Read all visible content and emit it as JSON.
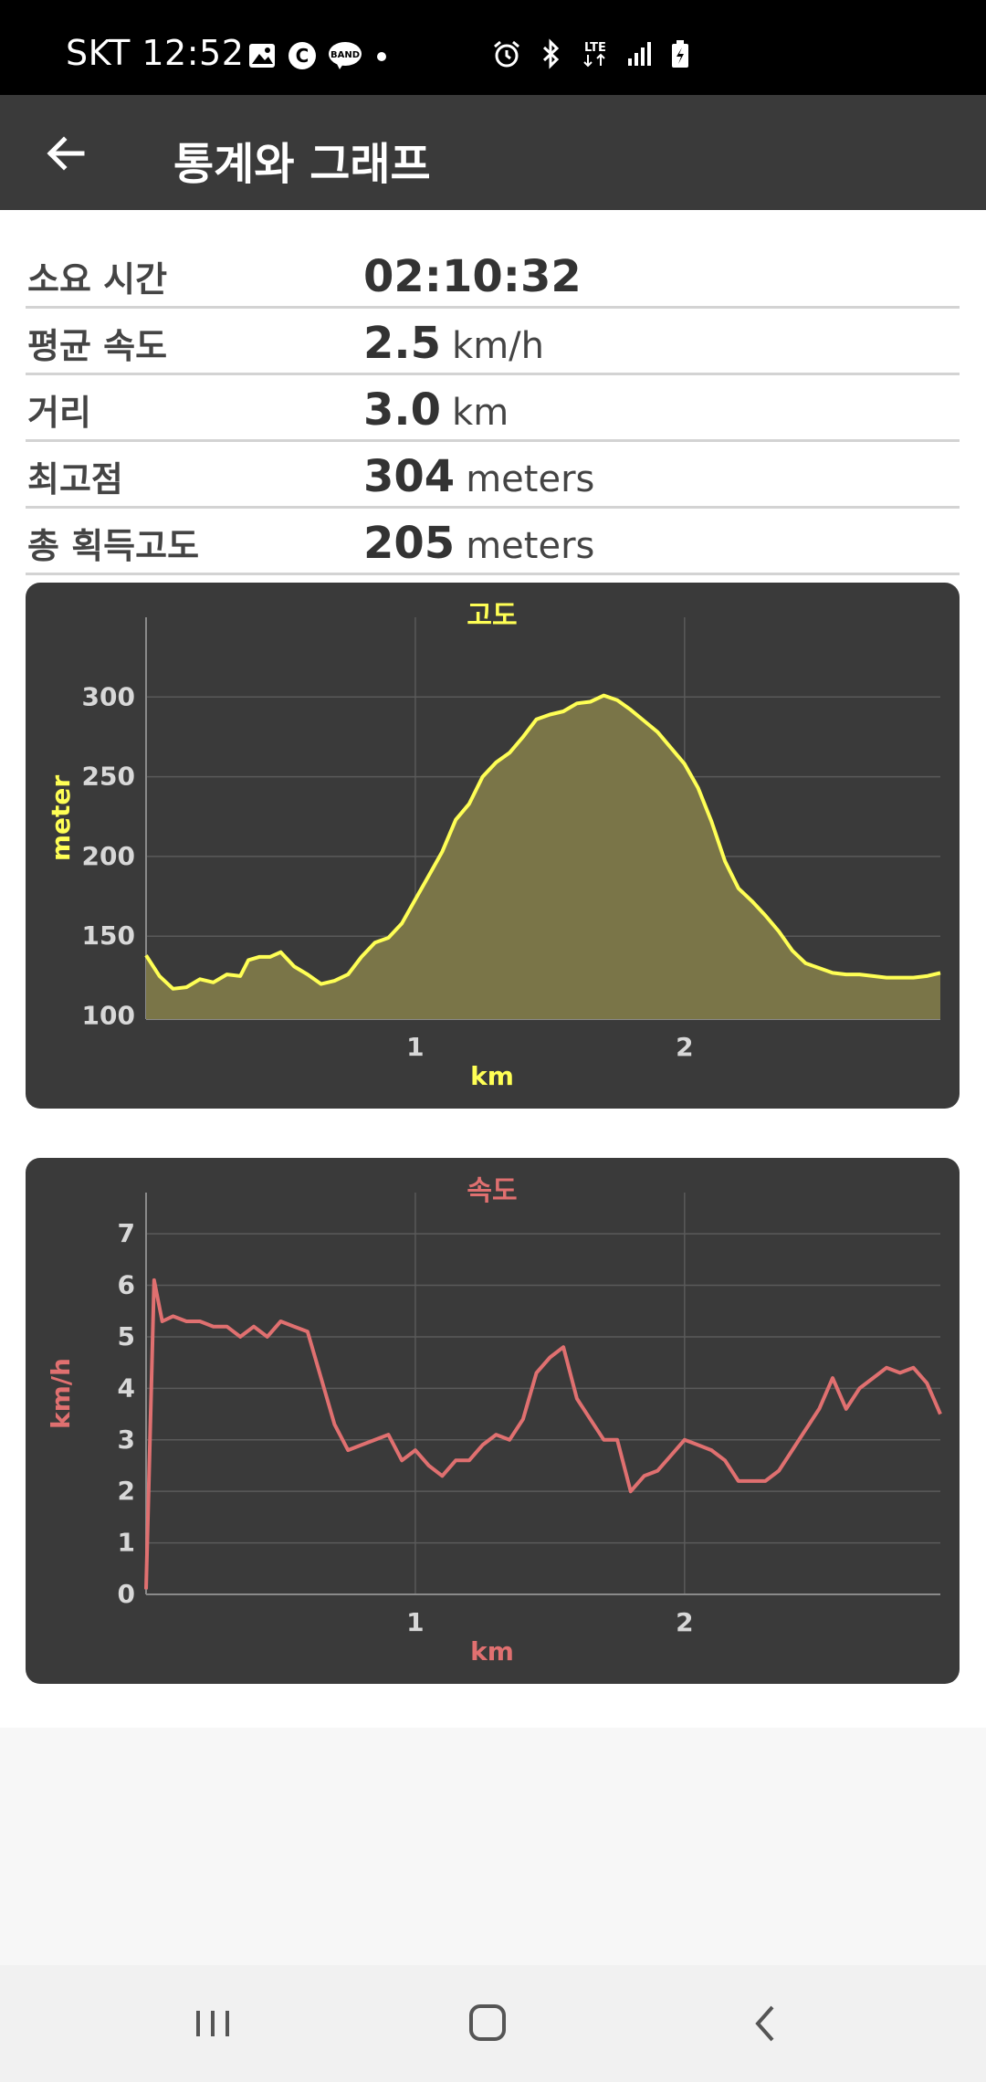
{
  "status_bar": {
    "carrier_time": "SKT 12:52",
    "left_icons": [
      "gallery-icon",
      "c-icon",
      "band-icon",
      "dot-icon"
    ],
    "right_icons": [
      "alarm-icon",
      "bluetooth-icon",
      "lte-icon",
      "signal-icon",
      "battery-icon"
    ],
    "lte_label": "LTE"
  },
  "app_bar": {
    "title": "통계와 그래프",
    "back_icon": "arrow-left-icon"
  },
  "stats": [
    {
      "label": "소요 시간",
      "value": "02:10:32",
      "unit": ""
    },
    {
      "label": "평균 속도",
      "value": "2.5",
      "unit": "km/h"
    },
    {
      "label": "거리",
      "value": "3.0",
      "unit": "km"
    },
    {
      "label": "최고점",
      "value": "304",
      "unit": "meters"
    },
    {
      "label": "총 획득고도",
      "value": "205",
      "unit": "meters"
    }
  ],
  "chart_data": [
    {
      "type": "area",
      "title": "고도",
      "xlabel": "km",
      "ylabel": "meter",
      "xlim": [
        0,
        2.95
      ],
      "ylim": [
        98,
        350
      ],
      "xticks": [
        1,
        2
      ],
      "yticks": [
        100,
        150,
        200,
        250,
        300
      ],
      "grid": true,
      "color": "#ffff55",
      "fill": "#7a7548",
      "series": [
        {
          "x": [
            0,
            0.05,
            0.1,
            0.15,
            0.2,
            0.25,
            0.3,
            0.35,
            0.38,
            0.42,
            0.46,
            0.5,
            0.55,
            0.6,
            0.65,
            0.7,
            0.75,
            0.8,
            0.85,
            0.9,
            0.95,
            1.0,
            1.05,
            1.1,
            1.15,
            1.2,
            1.25,
            1.3,
            1.35,
            1.4,
            1.45,
            1.5,
            1.55,
            1.6,
            1.65,
            1.7,
            1.75,
            1.8,
            1.85,
            1.9,
            1.95,
            2.0,
            2.05,
            2.1,
            2.15,
            2.2,
            2.25,
            2.3,
            2.35,
            2.4,
            2.45,
            2.5,
            2.55,
            2.6,
            2.65,
            2.7,
            2.75,
            2.8,
            2.85,
            2.9,
            2.95
          ],
          "y": [
            138,
            125,
            117,
            118,
            123,
            121,
            126,
            125,
            135,
            137,
            137,
            140,
            131,
            126,
            120,
            122,
            126,
            137,
            146,
            149,
            158,
            173,
            188,
            203,
            223,
            233,
            250,
            259,
            265,
            275,
            286,
            289,
            291,
            296,
            297,
            301,
            298,
            292,
            285,
            278,
            268,
            258,
            243,
            222,
            197,
            180,
            172,
            163,
            153,
            141,
            133,
            130,
            127,
            126,
            126,
            125,
            124,
            124,
            124,
            125,
            127
          ]
        }
      ]
    },
    {
      "type": "line",
      "title": "속도",
      "xlabel": "km",
      "ylabel": "km/h",
      "xlim": [
        0,
        2.95
      ],
      "ylim": [
        0,
        7.8
      ],
      "xticks": [
        1,
        2
      ],
      "yticks": [
        0,
        1,
        2,
        3,
        4,
        5,
        6,
        7
      ],
      "grid": true,
      "color": "#e07070",
      "series": [
        {
          "x": [
            0,
            0.03,
            0.06,
            0.1,
            0.15,
            0.2,
            0.25,
            0.3,
            0.35,
            0.4,
            0.45,
            0.5,
            0.55,
            0.6,
            0.65,
            0.7,
            0.75,
            0.8,
            0.85,
            0.9,
            0.95,
            1.0,
            1.05,
            1.1,
            1.15,
            1.2,
            1.25,
            1.3,
            1.35,
            1.4,
            1.45,
            1.5,
            1.55,
            1.6,
            1.65,
            1.7,
            1.75,
            1.8,
            1.85,
            1.9,
            1.95,
            2.0,
            2.05,
            2.1,
            2.15,
            2.2,
            2.25,
            2.3,
            2.35,
            2.4,
            2.45,
            2.5,
            2.55,
            2.6,
            2.65,
            2.7,
            2.75,
            2.8,
            2.85,
            2.9,
            2.95
          ],
          "y": [
            0.1,
            6.1,
            5.3,
            5.4,
            5.3,
            5.3,
            5.2,
            5.2,
            5.0,
            5.2,
            5.0,
            5.3,
            5.2,
            5.1,
            4.2,
            3.3,
            2.8,
            2.9,
            3.0,
            3.1,
            2.6,
            2.8,
            2.5,
            2.3,
            2.6,
            2.6,
            2.9,
            3.1,
            3.0,
            3.4,
            4.3,
            4.6,
            4.8,
            3.8,
            3.4,
            3.0,
            3.0,
            2.0,
            2.3,
            2.4,
            2.7,
            3.0,
            2.9,
            2.8,
            2.6,
            2.2,
            2.2,
            2.2,
            2.4,
            2.8,
            3.2,
            3.6,
            4.2,
            3.6,
            4.0,
            4.2,
            4.4,
            4.3,
            4.4,
            4.1,
            3.5
          ]
        }
      ]
    }
  ]
}
